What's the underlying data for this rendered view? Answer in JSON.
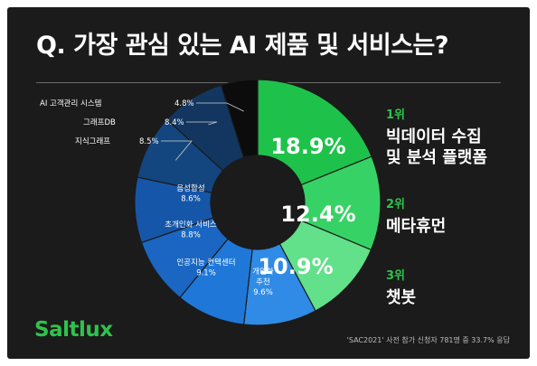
{
  "title": {
    "question": "Q.",
    "text": "가장 관심 있는 AI 제품 및 서비스는?"
  },
  "brand": {
    "logo": "Saltlux"
  },
  "source": "'SAC2021' 사전 참가 신청자 781명 중 33.7% 응답",
  "top3": [
    {
      "rank": "1위",
      "lines": [
        "빅데이터 수집",
        "및 분석 플랫폼"
      ]
    },
    {
      "rank": "2위",
      "lines": [
        "메타휴먼"
      ]
    },
    {
      "rank": "3위",
      "lines": [
        "챗봇"
      ]
    }
  ],
  "colors": {
    "accent": "#2fc24c",
    "background": "#1b1b1b"
  },
  "chart_data": {
    "type": "pie",
    "donut": true,
    "title": "가장 관심 있는 AI 제품 및 서비스는?",
    "unit": "%",
    "slices": [
      {
        "label": "빅데이터 수집 및 분석 플랫폼",
        "value": 18.9,
        "display": "18.9%",
        "color": "#1ec24b"
      },
      {
        "label": "메타휴먼",
        "value": 12.4,
        "display": "12.4%",
        "color": "#37d265"
      },
      {
        "label": "챗봇",
        "value": 10.9,
        "display": "10.9%",
        "color": "#63e08a"
      },
      {
        "label": "개인화 추천",
        "value": 9.6,
        "display": "9.6%",
        "color": "#2f8be6"
      },
      {
        "label": "인공지능 컨택센터",
        "value": 9.1,
        "display": "9.1%",
        "color": "#1f78d8"
      },
      {
        "label": "초개인화 서비스",
        "value": 8.8,
        "display": "8.8%",
        "color": "#1a66c2"
      },
      {
        "label": "음성합성",
        "value": 8.6,
        "display": "8.6%",
        "color": "#1656a8"
      },
      {
        "label": "지식그래프",
        "value": 8.5,
        "display": "8.5%",
        "color": "#13467f"
      },
      {
        "label": "그래프DB",
        "value": 8.4,
        "display": "8.4%",
        "color": "#123660"
      },
      {
        "label": "AI 고객관리 시스템",
        "value": 4.8,
        "display": "4.8%",
        "color": "#0c0c0c"
      }
    ]
  }
}
